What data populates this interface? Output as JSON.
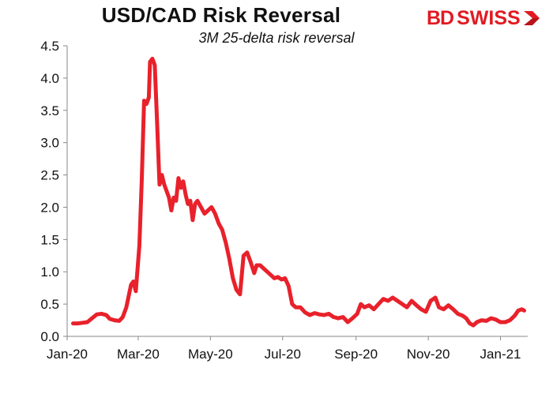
{
  "chart_data": {
    "type": "line",
    "title": "USD/CAD Risk Reversal",
    "subtitle": "3M 25-delta risk reversal",
    "ylim": [
      0,
      4.5
    ],
    "y_ticks": [
      "0.0",
      "0.5",
      "1.0",
      "1.5",
      "2.0",
      "2.5",
      "3.0",
      "3.5",
      "4.0",
      "4.5"
    ],
    "x_ticks": [
      "Jan-20",
      "Mar-20",
      "May-20",
      "Jul-20",
      "Sep-20",
      "Nov-20",
      "Jan-21"
    ],
    "x_range": [
      "2020-01-01",
      "2021-01-24"
    ],
    "grid": false,
    "series": [
      {
        "color": "#e8212b",
        "points": [
          [
            "2020-01-06",
            0.2
          ],
          [
            "2020-01-10",
            0.2
          ],
          [
            "2020-01-14",
            0.21
          ],
          [
            "2020-01-18",
            0.22
          ],
          [
            "2020-01-22",
            0.28
          ],
          [
            "2020-01-26",
            0.34
          ],
          [
            "2020-01-30",
            0.35
          ],
          [
            "2020-02-03",
            0.33
          ],
          [
            "2020-02-06",
            0.27
          ],
          [
            "2020-02-10",
            0.25
          ],
          [
            "2020-02-14",
            0.24
          ],
          [
            "2020-02-17",
            0.3
          ],
          [
            "2020-02-20",
            0.45
          ],
          [
            "2020-02-24",
            0.8
          ],
          [
            "2020-02-26",
            0.85
          ],
          [
            "2020-02-28",
            0.7
          ],
          [
            "2020-03-02",
            1.4
          ],
          [
            "2020-03-04",
            2.4
          ],
          [
            "2020-03-06",
            3.65
          ],
          [
            "2020-03-08",
            3.6
          ],
          [
            "2020-03-10",
            3.7
          ],
          [
            "2020-03-11",
            4.25
          ],
          [
            "2020-03-13",
            4.3
          ],
          [
            "2020-03-15",
            4.2
          ],
          [
            "2020-03-17",
            3.3
          ],
          [
            "2020-03-19",
            2.35
          ],
          [
            "2020-03-21",
            2.5
          ],
          [
            "2020-03-23",
            2.35
          ],
          [
            "2020-03-25",
            2.25
          ],
          [
            "2020-03-27",
            2.15
          ],
          [
            "2020-03-29",
            1.95
          ],
          [
            "2020-03-31",
            2.15
          ],
          [
            "2020-04-02",
            2.1
          ],
          [
            "2020-04-04",
            2.45
          ],
          [
            "2020-04-06",
            2.3
          ],
          [
            "2020-04-08",
            2.4
          ],
          [
            "2020-04-10",
            2.2
          ],
          [
            "2020-04-12",
            2.05
          ],
          [
            "2020-04-14",
            2.1
          ],
          [
            "2020-04-16",
            1.8
          ],
          [
            "2020-04-18",
            2.05
          ],
          [
            "2020-04-20",
            2.1
          ],
          [
            "2020-04-23",
            2.0
          ],
          [
            "2020-04-26",
            1.9
          ],
          [
            "2020-04-29",
            1.95
          ],
          [
            "2020-05-02",
            2.0
          ],
          [
            "2020-05-05",
            1.9
          ],
          [
            "2020-05-08",
            1.75
          ],
          [
            "2020-05-11",
            1.65
          ],
          [
            "2020-05-14",
            1.45
          ],
          [
            "2020-05-17",
            1.2
          ],
          [
            "2020-05-20",
            0.9
          ],
          [
            "2020-05-23",
            0.72
          ],
          [
            "2020-05-26",
            0.65
          ],
          [
            "2020-05-29",
            1.25
          ],
          [
            "2020-06-01",
            1.3
          ],
          [
            "2020-06-04",
            1.15
          ],
          [
            "2020-06-07",
            0.98
          ],
          [
            "2020-06-09",
            1.1
          ],
          [
            "2020-06-12",
            1.1
          ],
          [
            "2020-06-15",
            1.05
          ],
          [
            "2020-06-18",
            1.0
          ],
          [
            "2020-06-21",
            0.95
          ],
          [
            "2020-06-24",
            0.9
          ],
          [
            "2020-06-27",
            0.92
          ],
          [
            "2020-06-30",
            0.88
          ],
          [
            "2020-07-03",
            0.9
          ],
          [
            "2020-07-06",
            0.78
          ],
          [
            "2020-07-09",
            0.5
          ],
          [
            "2020-07-12",
            0.45
          ],
          [
            "2020-07-16",
            0.45
          ],
          [
            "2020-07-20",
            0.37
          ],
          [
            "2020-07-24",
            0.33
          ],
          [
            "2020-07-28",
            0.36
          ],
          [
            "2020-08-01",
            0.34
          ],
          [
            "2020-08-05",
            0.33
          ],
          [
            "2020-08-09",
            0.35
          ],
          [
            "2020-08-13",
            0.3
          ],
          [
            "2020-08-17",
            0.28
          ],
          [
            "2020-08-21",
            0.3
          ],
          [
            "2020-08-25",
            0.22
          ],
          [
            "2020-08-29",
            0.28
          ],
          [
            "2020-09-02",
            0.35
          ],
          [
            "2020-09-05",
            0.5
          ],
          [
            "2020-09-08",
            0.45
          ],
          [
            "2020-09-12",
            0.48
          ],
          [
            "2020-09-16",
            0.42
          ],
          [
            "2020-09-20",
            0.5
          ],
          [
            "2020-09-24",
            0.58
          ],
          [
            "2020-09-28",
            0.55
          ],
          [
            "2020-10-02",
            0.6
          ],
          [
            "2020-10-06",
            0.55
          ],
          [
            "2020-10-10",
            0.5
          ],
          [
            "2020-10-14",
            0.45
          ],
          [
            "2020-10-18",
            0.55
          ],
          [
            "2020-10-22",
            0.48
          ],
          [
            "2020-10-26",
            0.42
          ],
          [
            "2020-10-30",
            0.38
          ],
          [
            "2020-11-03",
            0.55
          ],
          [
            "2020-11-07",
            0.6
          ],
          [
            "2020-11-10",
            0.45
          ],
          [
            "2020-11-14",
            0.42
          ],
          [
            "2020-11-18",
            0.48
          ],
          [
            "2020-11-22",
            0.42
          ],
          [
            "2020-11-26",
            0.35
          ],
          [
            "2020-11-30",
            0.32
          ],
          [
            "2020-12-03",
            0.28
          ],
          [
            "2020-12-06",
            0.2
          ],
          [
            "2020-12-09",
            0.17
          ],
          [
            "2020-12-12",
            0.22
          ],
          [
            "2020-12-16",
            0.25
          ],
          [
            "2020-12-20",
            0.24
          ],
          [
            "2020-12-24",
            0.28
          ],
          [
            "2020-12-28",
            0.26
          ],
          [
            "2021-01-01",
            0.22
          ],
          [
            "2021-01-05",
            0.22
          ],
          [
            "2021-01-09",
            0.25
          ],
          [
            "2021-01-13",
            0.32
          ],
          [
            "2021-01-16",
            0.4
          ],
          [
            "2021-01-19",
            0.42
          ],
          [
            "2021-01-21",
            0.4
          ]
        ]
      }
    ]
  },
  "logo": {
    "text_bd": "BD",
    "text_swiss": "SWISS"
  }
}
